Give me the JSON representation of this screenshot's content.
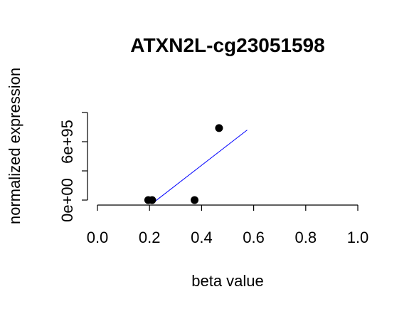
{
  "chart_data": {
    "type": "scatter",
    "title": "ATXN2L-cg23051598",
    "xlabel": "beta value",
    "ylabel": "normalized expression",
    "xlim": [
      0.0,
      1.0
    ],
    "ylim": [
      0,
      9e+95
    ],
    "x_ticks": [
      0.0,
      0.2,
      0.4,
      0.6,
      0.8,
      1.0
    ],
    "x_tick_labels": [
      "0.0",
      "0.2",
      "0.4",
      "0.6",
      "0.8",
      "1.0"
    ],
    "y_ticks": [
      0,
      3e+95,
      6e+95,
      9e+95
    ],
    "y_tick_labels": [
      "0e+00",
      "6e+95"
    ],
    "y_tick_labeled_values": [
      0,
      6e+95
    ],
    "points": [
      {
        "x": 0.195,
        "y": 0
      },
      {
        "x": 0.21,
        "y": 0
      },
      {
        "x": 0.373,
        "y": 0
      },
      {
        "x": 0.467,
        "y": 7.4e+95
      }
    ],
    "fit_line": {
      "color": "#0000ff",
      "x": [
        0.225,
        0.575
      ],
      "y": [
        -5e+93,
        7.2e+95
      ]
    },
    "point_color": "#000000",
    "grid": false,
    "legend": "none"
  }
}
